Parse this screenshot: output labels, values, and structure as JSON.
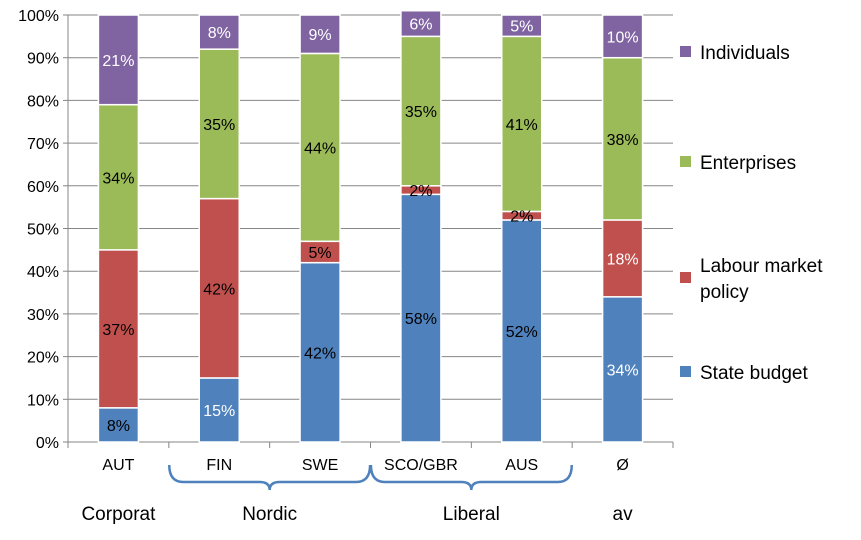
{
  "chart_data": {
    "type": "bar",
    "stacked": true,
    "normalized": true,
    "categories": [
      "AUT",
      "FIN",
      "SWE",
      "SCO/GBR",
      "AUS",
      "Ø"
    ],
    "groups": [
      {
        "label": "Corporat",
        "categories": [
          "AUT"
        ],
        "bracket": false
      },
      {
        "label": "Nordic",
        "categories": [
          "FIN",
          "SWE"
        ],
        "bracket": true
      },
      {
        "label": "Liberal",
        "categories": [
          "SCO/GBR",
          "AUS"
        ],
        "bracket": true
      },
      {
        "label": "av",
        "categories": [
          "Ø"
        ],
        "bracket": false
      }
    ],
    "series": [
      {
        "name": "State budget",
        "color": "#4f81bd",
        "values": [
          8,
          15,
          42,
          58,
          52,
          34
        ],
        "labels": [
          "8%",
          "15%",
          "42%",
          "58%",
          "52%",
          "34%"
        ],
        "label_color": [
          "#000000",
          "#ffffff",
          "#000000",
          "#000000",
          "#000000",
          "#ffffff"
        ]
      },
      {
        "name": "Labour market policy",
        "legend_lines": [
          "Labour market",
          "policy"
        ],
        "color": "#c0504d",
        "values": [
          37,
          42,
          5,
          2,
          2,
          18
        ],
        "labels": [
          "37%",
          "42%",
          "5%",
          "2%",
          "2%",
          "18%"
        ],
        "label_color": [
          "#000000",
          "#000000",
          "#000000",
          "#000000",
          "#000000",
          "#ffffff"
        ]
      },
      {
        "name": "Enterprises",
        "color": "#9bbb59",
        "values": [
          34,
          35,
          44,
          35,
          41,
          38
        ],
        "labels": [
          "34%",
          "35%",
          "44%",
          "35%",
          "41%",
          "38%"
        ],
        "label_color": [
          "#000000",
          "#000000",
          "#000000",
          "#000000",
          "#000000",
          "#000000"
        ]
      },
      {
        "name": "Individuals",
        "color": "#8064a2",
        "values": [
          21,
          8,
          9,
          6,
          5,
          10
        ],
        "labels": [
          "21%",
          "8%",
          "9%",
          "6%",
          "5%",
          "10%"
        ],
        "label_color": [
          "#ffffff",
          "#ffffff",
          "#ffffff",
          "#ffffff",
          "#ffffff",
          "#ffffff"
        ]
      }
    ],
    "ylim": [
      0,
      100
    ],
    "yticks": [
      "0%",
      "10%",
      "20%",
      "30%",
      "40%",
      "50%",
      "60%",
      "70%",
      "80%",
      "90%",
      "100%"
    ],
    "grid": true,
    "legend_position": "right",
    "legend_order": [
      "Individuals",
      "Enterprises",
      "Labour market policy",
      "State budget"
    ],
    "title": "",
    "xlabel": "",
    "ylabel": ""
  }
}
